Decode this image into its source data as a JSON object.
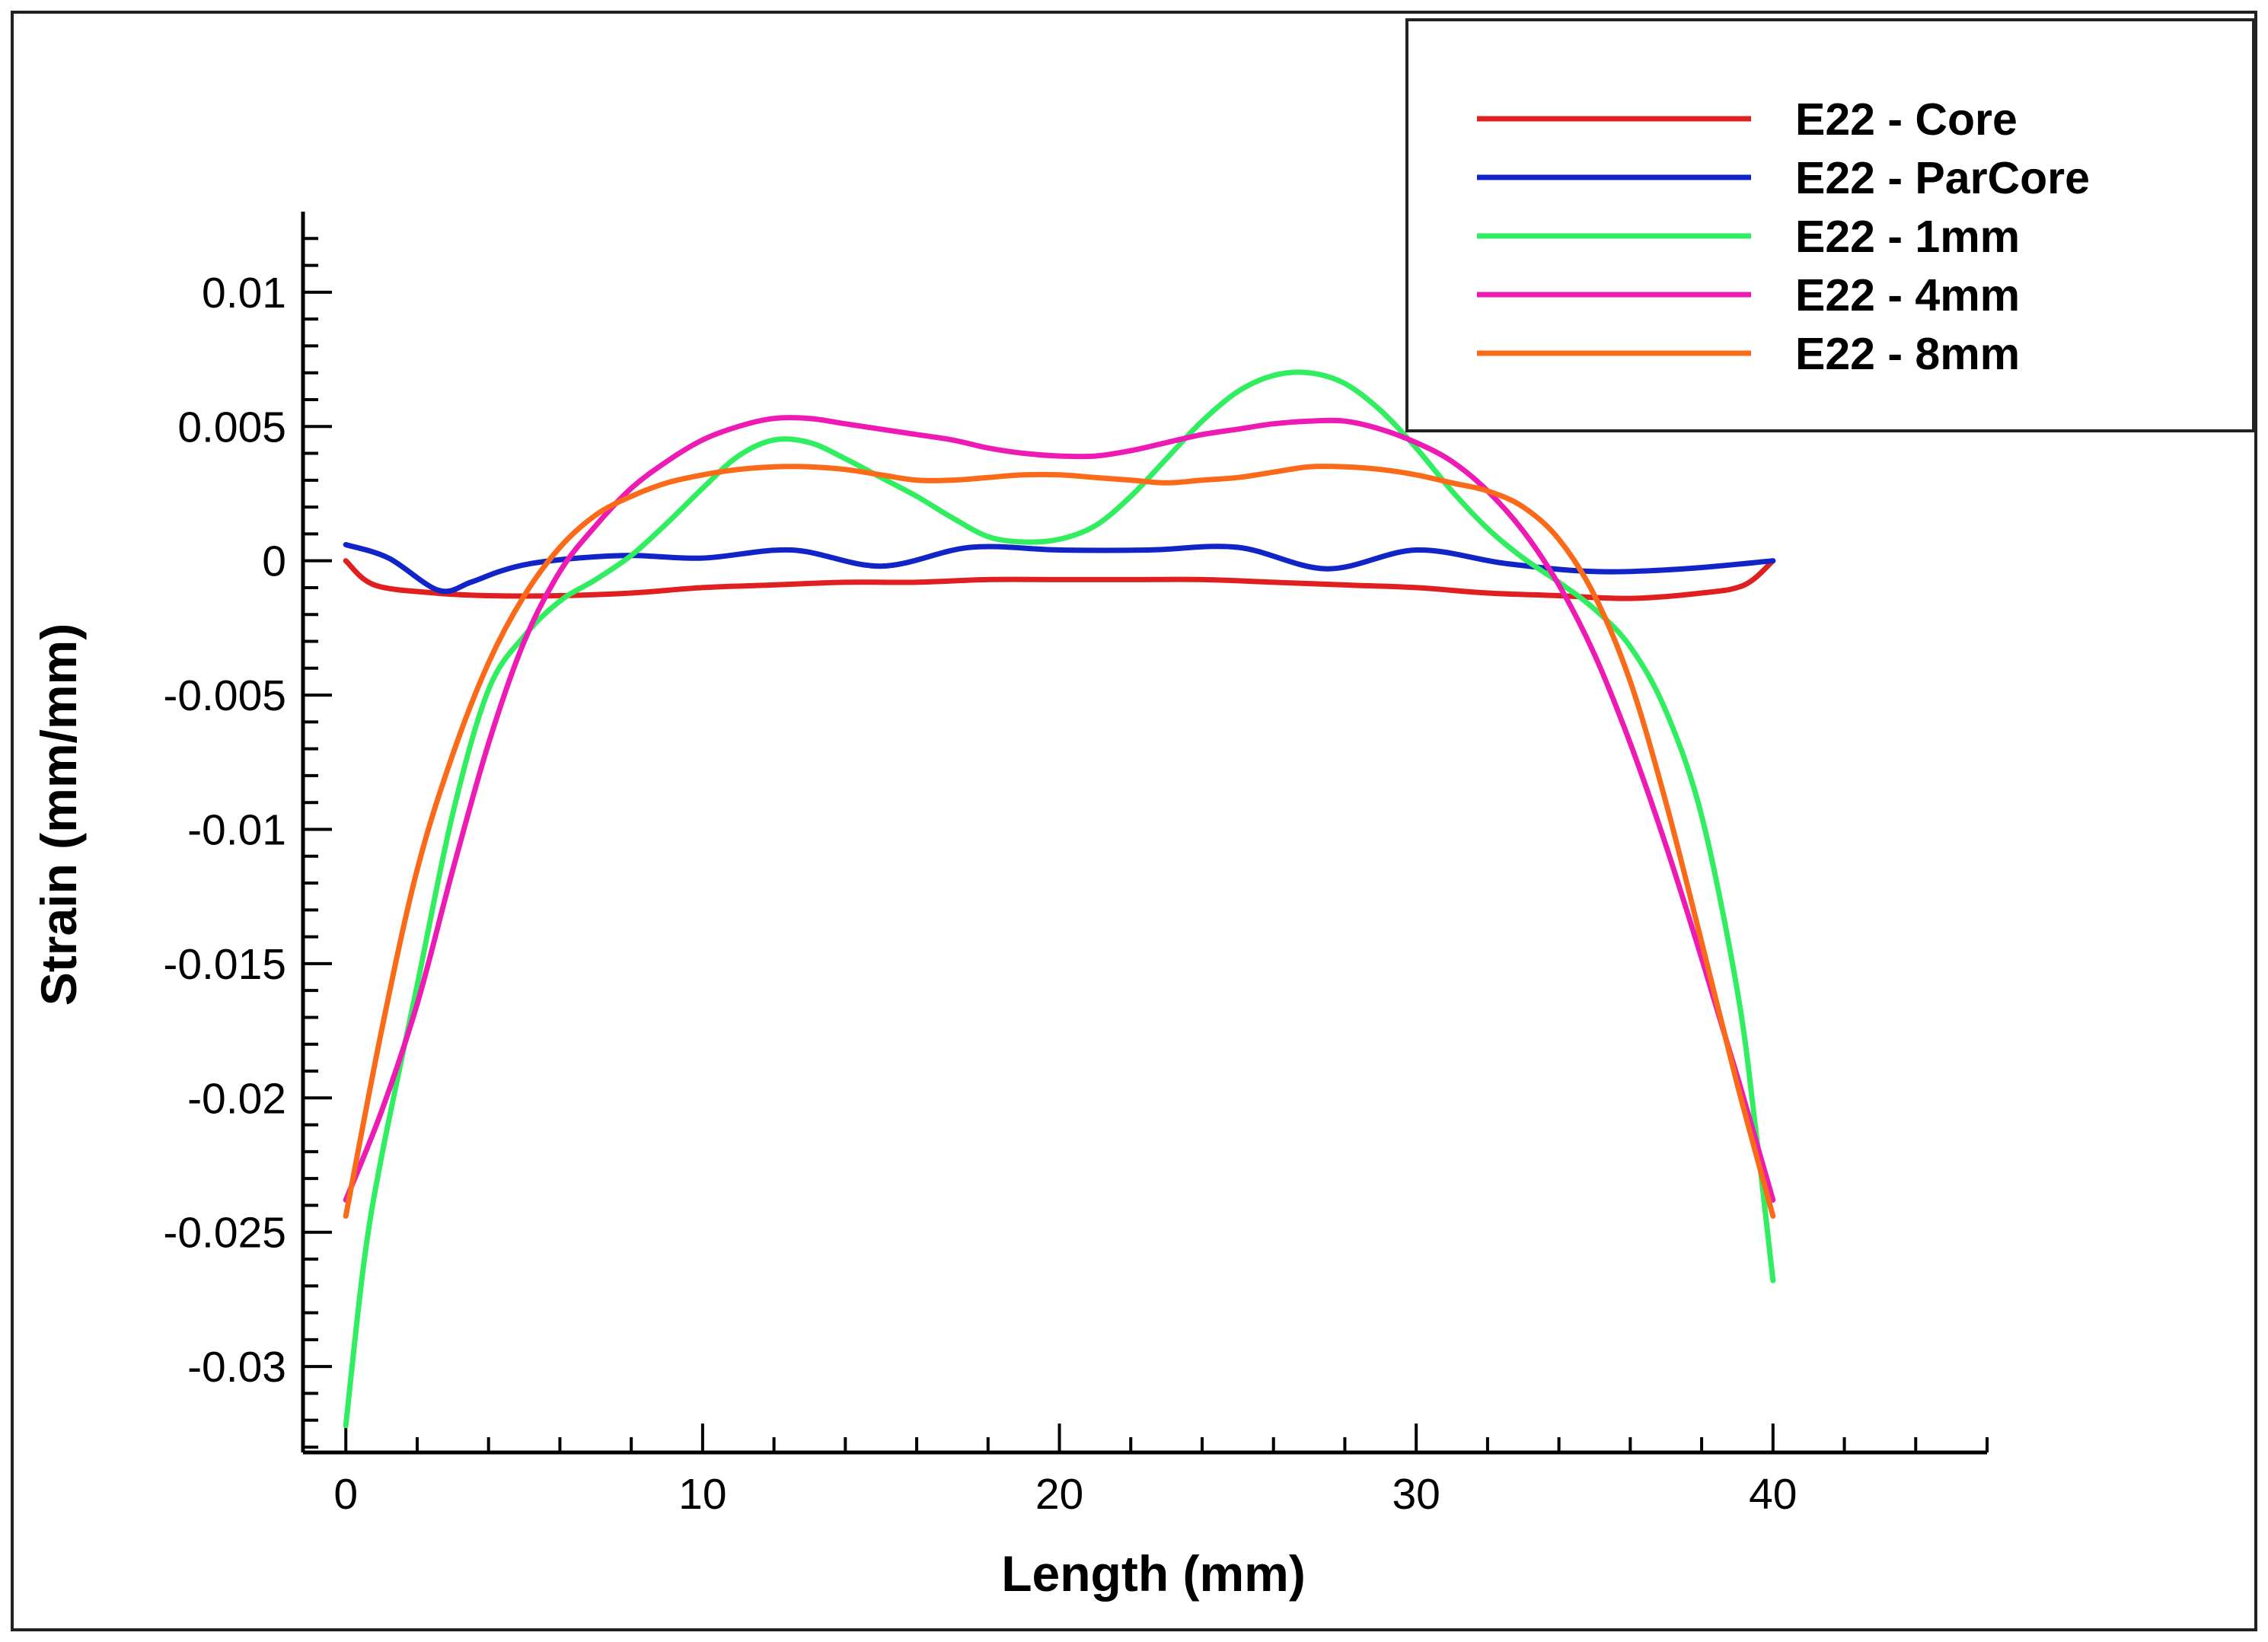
{
  "chart_data": {
    "type": "line",
    "xlabel": "Length (mm)",
    "ylabel": "Strain (mm/mm)",
    "xlim": [
      -1.2,
      46
    ],
    "ylim": [
      -0.0332,
      0.013
    ],
    "x_ticks": [
      0,
      10,
      20,
      30,
      40
    ],
    "x_tick_labels": [
      "0",
      "10",
      "20",
      "30",
      "40"
    ],
    "y_ticks": [
      0.01,
      0.005,
      0,
      -0.005,
      -0.01,
      -0.015,
      -0.02,
      -0.025,
      -0.03
    ],
    "y_tick_labels": [
      "0.01",
      "0.005",
      "0",
      "-0.005",
      "-0.01",
      "-0.015",
      "-0.02",
      "-0.025",
      "-0.03"
    ],
    "grid": false,
    "legend_position": "top-right",
    "series": [
      {
        "name": "E22 - Core",
        "color": "#e02020",
        "points": [
          [
            0,
            0
          ],
          [
            0.8,
            -0.0009
          ],
          [
            2.5,
            -0.0012
          ],
          [
            4,
            -0.0013
          ],
          [
            6,
            -0.0013
          ],
          [
            8,
            -0.0012
          ],
          [
            10,
            -0.001
          ],
          [
            12,
            -0.0009
          ],
          [
            14,
            -0.0008
          ],
          [
            16,
            -0.0008
          ],
          [
            18,
            -0.0007
          ],
          [
            20,
            -0.0007
          ],
          [
            22,
            -0.0007
          ],
          [
            24,
            -0.0007
          ],
          [
            26,
            -0.0008
          ],
          [
            28,
            -0.0009
          ],
          [
            30,
            -0.001
          ],
          [
            32,
            -0.0012
          ],
          [
            34,
            -0.0013
          ],
          [
            36,
            -0.0014
          ],
          [
            38,
            -0.0012
          ],
          [
            39.2,
            -0.0009
          ],
          [
            40,
            0
          ]
        ]
      },
      {
        "name": "E22 - ParCore",
        "color": "#1024c8",
        "points": [
          [
            0,
            0.0006
          ],
          [
            1.2,
            0.0001
          ],
          [
            2.6,
            -0.0011
          ],
          [
            3.5,
            -0.0008
          ],
          [
            4.3,
            -0.0004
          ],
          [
            5.2,
            -0.0001
          ],
          [
            6.5,
            0.0001
          ],
          [
            8,
            0.0002
          ],
          [
            10,
            0.0001
          ],
          [
            12.5,
            0.0004
          ],
          [
            15,
            -0.0002
          ],
          [
            17.5,
            0.0005
          ],
          [
            20,
            0.0004
          ],
          [
            22.5,
            0.0004
          ],
          [
            25,
            0.0005
          ],
          [
            27.5,
            -0.0003
          ],
          [
            30,
            0.0004
          ],
          [
            32.5,
            -0.0001
          ],
          [
            35,
            -0.0004
          ],
          [
            37.5,
            -0.0003
          ],
          [
            40,
            0
          ]
        ]
      },
      {
        "name": "E22 - 1mm",
        "color": "#30ee60",
        "points": [
          [
            0,
            -0.0322
          ],
          [
            0.5,
            -0.0262
          ],
          [
            1,
            -0.0222
          ],
          [
            2,
            -0.0158
          ],
          [
            3,
            -0.0094
          ],
          [
            4,
            -0.0048
          ],
          [
            5,
            -0.0028
          ],
          [
            6,
            -0.0015
          ],
          [
            7,
            -0.0007
          ],
          [
            8,
            0.0002
          ],
          [
            9,
            0.0014
          ],
          [
            10,
            0.0027
          ],
          [
            11,
            0.0039
          ],
          [
            12,
            0.0045
          ],
          [
            13,
            0.0044
          ],
          [
            14,
            0.0038
          ],
          [
            15,
            0.0031
          ],
          [
            16,
            0.0024
          ],
          [
            17,
            0.0016
          ],
          [
            18,
            0.0009
          ],
          [
            19,
            0.0007
          ],
          [
            20,
            0.0008
          ],
          [
            21,
            0.0013
          ],
          [
            22,
            0.0024
          ],
          [
            23,
            0.0038
          ],
          [
            24,
            0.0052
          ],
          [
            25,
            0.0063
          ],
          [
            26,
            0.0069
          ],
          [
            27,
            0.007
          ],
          [
            28,
            0.0066
          ],
          [
            29,
            0.0056
          ],
          [
            30,
            0.0042
          ],
          [
            31,
            0.0026
          ],
          [
            32,
            0.0012
          ],
          [
            33,
            0.0001
          ],
          [
            34,
            -0.0008
          ],
          [
            35,
            -0.0018
          ],
          [
            36,
            -0.0032
          ],
          [
            37,
            -0.0056
          ],
          [
            38,
            -0.0095
          ],
          [
            39,
            -0.016
          ],
          [
            39.5,
            -0.021
          ],
          [
            40,
            -0.0268
          ]
        ]
      },
      {
        "name": "E22 - 4mm",
        "color": "#ee1ab4",
        "points": [
          [
            0,
            -0.0238
          ],
          [
            1,
            -0.0205
          ],
          [
            2,
            -0.0165
          ],
          [
            3,
            -0.0115
          ],
          [
            4,
            -0.0068
          ],
          [
            5,
            -0.003
          ],
          [
            6,
            -0.0004
          ],
          [
            7,
            0.0013
          ],
          [
            8,
            0.0027
          ],
          [
            9,
            0.0037
          ],
          [
            10,
            0.0045
          ],
          [
            11,
            0.005
          ],
          [
            12,
            0.0053
          ],
          [
            13,
            0.0053
          ],
          [
            14,
            0.0051
          ],
          [
            15,
            0.0049
          ],
          [
            16,
            0.0047
          ],
          [
            17,
            0.0045
          ],
          [
            18,
            0.0042
          ],
          [
            19,
            0.004
          ],
          [
            20,
            0.0039
          ],
          [
            21,
            0.0039
          ],
          [
            22,
            0.0041
          ],
          [
            23,
            0.0044
          ],
          [
            24,
            0.0047
          ],
          [
            25,
            0.0049
          ],
          [
            26,
            0.0051
          ],
          [
            27,
            0.0052
          ],
          [
            28,
            0.0052
          ],
          [
            29,
            0.0049
          ],
          [
            30,
            0.0044
          ],
          [
            31,
            0.0037
          ],
          [
            32,
            0.0026
          ],
          [
            33,
            0.0011
          ],
          [
            34,
            -0.0009
          ],
          [
            35,
            -0.0035
          ],
          [
            36,
            -0.0068
          ],
          [
            37,
            -0.0106
          ],
          [
            38,
            -0.0148
          ],
          [
            39,
            -0.0192
          ],
          [
            40,
            -0.0238
          ]
        ]
      },
      {
        "name": "E22 - 8mm",
        "color": "#fa6a18",
        "points": [
          [
            0,
            -0.0244
          ],
          [
            1,
            -0.0175
          ],
          [
            2,
            -0.0115
          ],
          [
            3,
            -0.0072
          ],
          [
            4,
            -0.0038
          ],
          [
            5,
            -0.0013
          ],
          [
            6,
            0.0005
          ],
          [
            7,
            0.0017
          ],
          [
            8,
            0.0024
          ],
          [
            9,
            0.0029
          ],
          [
            10,
            0.0032
          ],
          [
            11,
            0.0034
          ],
          [
            12,
            0.0035
          ],
          [
            13,
            0.0035
          ],
          [
            14,
            0.0034
          ],
          [
            15,
            0.0032
          ],
          [
            16,
            0.003
          ],
          [
            17,
            0.003
          ],
          [
            18,
            0.0031
          ],
          [
            19,
            0.0032
          ],
          [
            20,
            0.0032
          ],
          [
            21,
            0.0031
          ],
          [
            22,
            0.003
          ],
          [
            23,
            0.0029
          ],
          [
            24,
            0.003
          ],
          [
            25,
            0.0031
          ],
          [
            26,
            0.0033
          ],
          [
            27,
            0.0035
          ],
          [
            28,
            0.0035
          ],
          [
            29,
            0.0034
          ],
          [
            30,
            0.0032
          ],
          [
            31,
            0.0029
          ],
          [
            32,
            0.0026
          ],
          [
            33,
            0.002
          ],
          [
            34,
            0.0008
          ],
          [
            35,
            -0.0013
          ],
          [
            36,
            -0.0045
          ],
          [
            37,
            -0.009
          ],
          [
            38,
            -0.0142
          ],
          [
            39,
            -0.0195
          ],
          [
            40,
            -0.0244
          ]
        ]
      }
    ]
  }
}
